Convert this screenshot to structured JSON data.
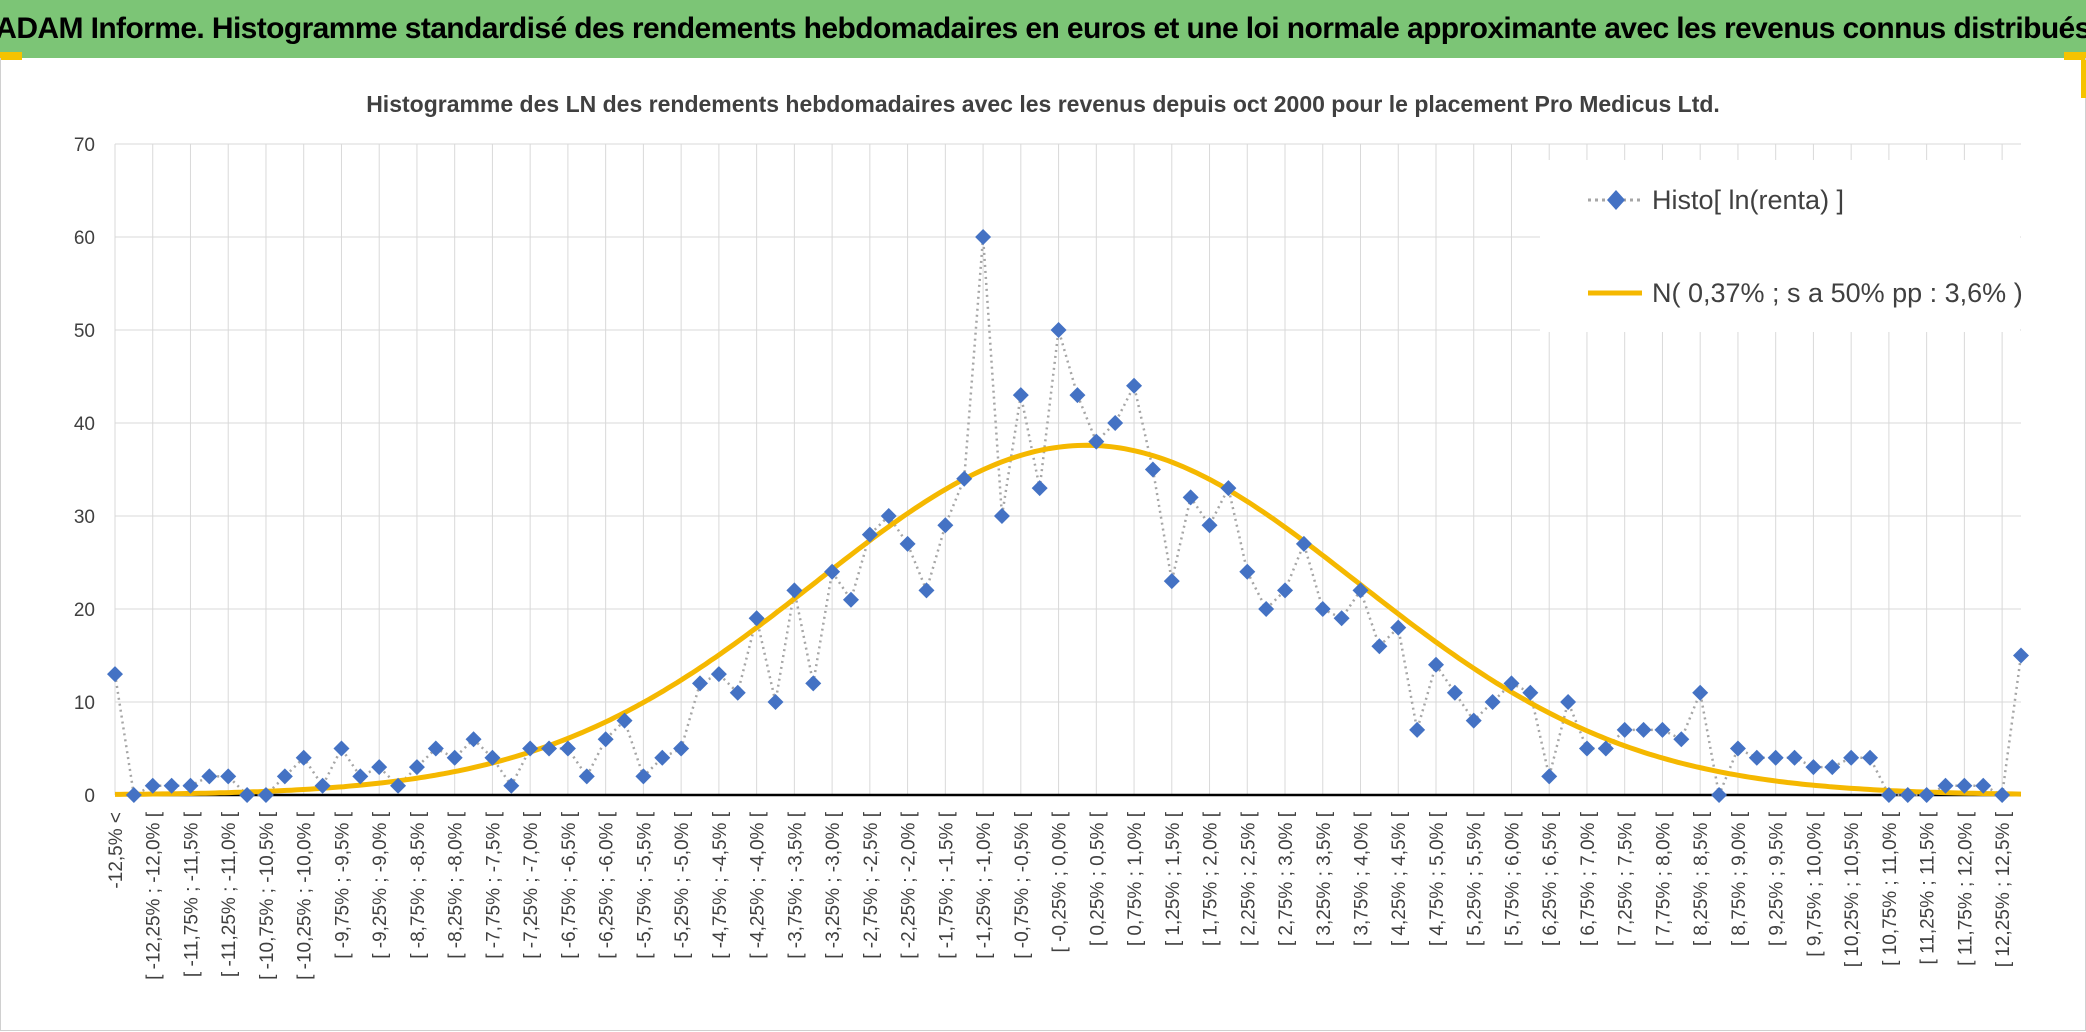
{
  "page": {
    "banner_title": "ADAM Informe. Histogramme standardisé des rendements hebdomadaires en euros et une loi normale approximante avec les revenus connus distribués"
  },
  "colors": {
    "banner_bg": "#7cc576",
    "accent": "#f5c300",
    "histo_marker": "#4472c4",
    "histo_line": "#a6a6a6",
    "normal_curve": "#f5b800",
    "grid": "#d9d9d9"
  },
  "chart_data": {
    "type": "line",
    "title": "Histogramme des LN des rendements hebdomadaires avec les revenus depuis oct 2000 pour le placement Pro Medicus Ltd.",
    "xlabel": "",
    "ylabel": "",
    "ylim": [
      0,
      70
    ],
    "yticks": [
      0,
      10,
      20,
      30,
      40,
      50,
      60,
      70
    ],
    "grid": true,
    "legend_position": "top-right",
    "categories": [
      "-12,5% <",
      "[ -12,25% ; -12,0% [",
      "[ -11,75% ; -11,5% [",
      "[ -11,25% ; -11,0% [",
      "[ -10,75% ; -10,5% [",
      "[ -10,25% ; -10,0% [",
      "[ -9,75% ; -9,5% [",
      "[ -9,25% ; -9,0% [",
      "[ -8,75% ; -8,5% [",
      "[ -8,25% ; -8,0% [",
      "[ -7,75% ; -7,5% [",
      "[ -7,25% ; -7,0% [",
      "[ -6,75% ; -6,5% [",
      "[ -6,25% ; -6,0% [",
      "[ -5,75% ; -5,5% [",
      "[ -5,25% ; -5,0% [",
      "[ -4,75% ; -4,5% [",
      "[ -4,25% ; -4,0% [",
      "[ -3,75% ; -3,5% [",
      "[ -3,25% ; -3,0% [",
      "[ -2,75% ; -2,5% [",
      "[ -2,25% ; -2,0% [",
      "[ -1,75% ; -1,5% [",
      "[ -1,25% ; -1,0% [",
      "[ -0,75% ; -0,5% [",
      "[ -0,25% ; 0,0% [",
      "[ 0,25% ; 0,5% [",
      "[ 0,75% ; 1,0% [",
      "[ 1,25% ; 1,5% [",
      "[ 1,75% ; 2,0% [",
      "[ 2,25% ; 2,5% [",
      "[ 2,75% ; 3,0% [",
      "[ 3,25% ; 3,5% [",
      "[ 3,75% ; 4,0% [",
      "[ 4,25% ; 4,5% [",
      "[ 4,75% ; 5,0% [",
      "[ 5,25% ; 5,5% [",
      "[ 5,75% ; 6,0% [",
      "[ 6,25% ; 6,5% [",
      "[ 6,75% ; 7,0% [",
      "[ 7,25% ; 7,5% [",
      "[ 7,75% ; 8,0% [",
      "[ 8,25% ; 8,5% [",
      "[ 8,75% ; 9,0% [",
      "[ 9,25% ; 9,5% [",
      "[ 9,75% ; 10,0% [",
      "[ 10,25% ; 10,5% [",
      "[ 10,75% ; 11,0% [",
      "[ 11,25% ; 11,5% [",
      "[ 11,75% ; 12,0% [",
      "[ 12,25% ; 12,5% ["
    ],
    "x": [
      -12.5,
      -12.25,
      -12.0,
      -11.75,
      -11.5,
      -11.25,
      -11.0,
      -10.75,
      -10.5,
      -10.25,
      -10.0,
      -9.75,
      -9.5,
      -9.25,
      -9.0,
      -8.75,
      -8.5,
      -8.25,
      -8.0,
      -7.75,
      -7.5,
      -7.25,
      -7.0,
      -6.75,
      -6.5,
      -6.25,
      -6.0,
      -5.75,
      -5.5,
      -5.25,
      -5.0,
      -4.75,
      -4.5,
      -4.25,
      -4.0,
      -3.75,
      -3.5,
      -3.25,
      -3.0,
      -2.75,
      -2.5,
      -2.25,
      -2.0,
      -1.75,
      -1.5,
      -1.25,
      -1.0,
      -0.75,
      -0.5,
      -0.25,
      0.0,
      0.25,
      0.5,
      0.75,
      1.0,
      1.25,
      1.5,
      1.75,
      2.0,
      2.25,
      2.5,
      2.75,
      3.0,
      3.25,
      3.5,
      3.75,
      4.0,
      4.25,
      4.5,
      4.75,
      5.0,
      5.25,
      5.5,
      5.75,
      6.0,
      6.25,
      6.5,
      6.75,
      7.0,
      7.25,
      7.5,
      7.75,
      8.0,
      8.25,
      8.5,
      8.75,
      9.0,
      9.25,
      9.5,
      9.75,
      10.0,
      10.25,
      10.5,
      10.75,
      11.0,
      11.25,
      11.5,
      11.75,
      12.0,
      12.25,
      12.5,
      12.75
    ],
    "series": [
      {
        "name": "Histo[ ln(renta) ]",
        "style": "dotted-line-diamond-markers",
        "values": [
          13,
          0,
          1,
          1,
          1,
          2,
          2,
          0,
          0,
          2,
          4,
          1,
          5,
          2,
          3,
          1,
          3,
          5,
          4,
          6,
          4,
          1,
          5,
          5,
          5,
          2,
          6,
          8,
          2,
          4,
          5,
          12,
          13,
          11,
          19,
          10,
          22,
          12,
          24,
          21,
          28,
          30,
          27,
          22,
          29,
          34,
          60,
          30,
          43,
          33,
          50,
          43,
          38,
          40,
          44,
          35,
          23,
          32,
          29,
          33,
          24,
          20,
          22,
          27,
          20,
          19,
          22,
          16,
          18,
          7,
          14,
          11,
          8,
          10,
          12,
          11,
          2,
          10,
          5,
          5,
          7,
          7,
          7,
          6,
          11,
          0,
          5,
          4,
          4,
          4,
          3,
          3,
          4,
          4,
          0,
          0,
          0,
          1,
          1,
          1,
          0,
          15
        ]
      },
      {
        "name": "N( 0,37% ; s a 50% pp : 3,6% )",
        "style": "smooth-line",
        "mean": 0.37,
        "sd": 3.6,
        "peak": 37.6
      }
    ]
  }
}
